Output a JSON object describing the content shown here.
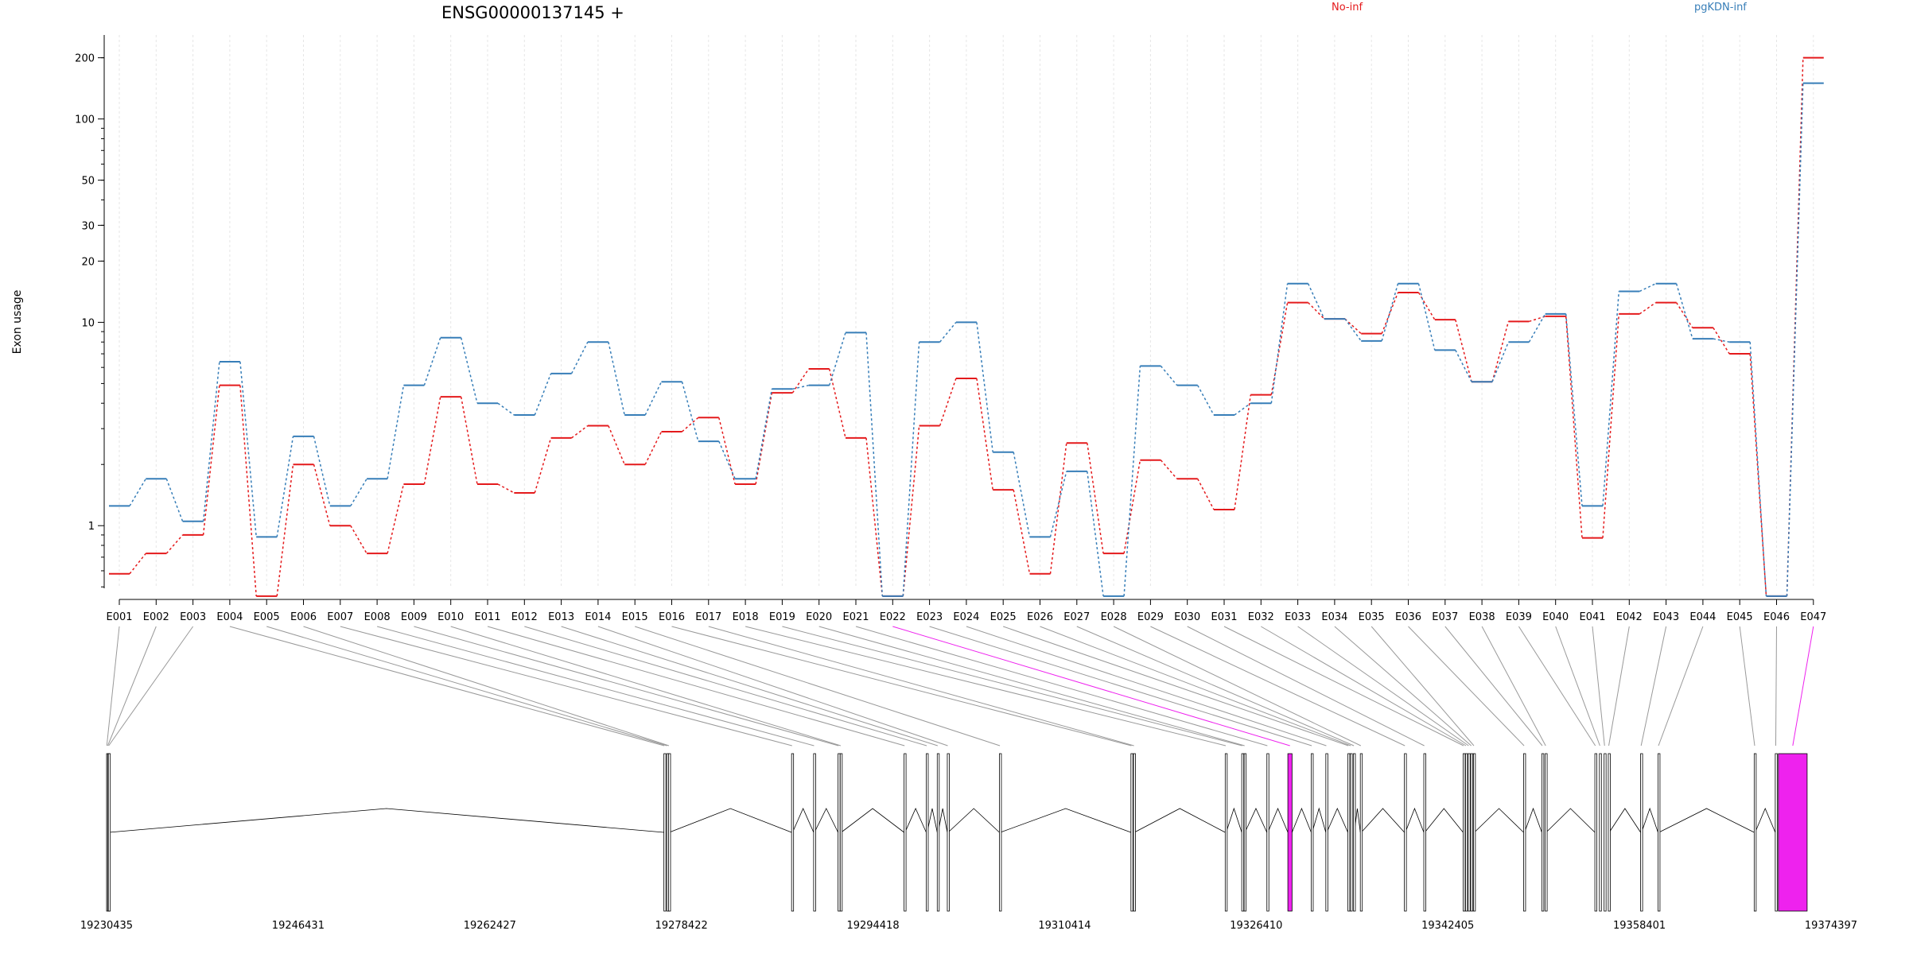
{
  "chart_data": {
    "type": "line",
    "title": "ENSG00000137145 +",
    "ylabel": "Exon usage",
    "yscale": "log",
    "ylim": [
      0.4,
      260
    ],
    "yticks": [
      1,
      10,
      20,
      30,
      50,
      100,
      200
    ],
    "ytick_labels": [
      "1",
      "10",
      "20",
      "30",
      "50",
      "100",
      "200"
    ],
    "legend_placement": "top",
    "colors": {
      "No-inf": "#e41a1c",
      "pgKDN-inf": "#377eb8",
      "highlight": "#ee22ee"
    },
    "categories": [
      "E001",
      "E002",
      "E003",
      "E004",
      "E005",
      "E006",
      "E007",
      "E008",
      "E009",
      "E010",
      "E011",
      "E012",
      "E013",
      "E014",
      "E015",
      "E016",
      "E017",
      "E018",
      "E019",
      "E020",
      "E021",
      "E022",
      "E023",
      "E024",
      "E025",
      "E026",
      "E027",
      "E028",
      "E029",
      "E030",
      "E031",
      "E032",
      "E033",
      "E034",
      "E035",
      "E036",
      "E037",
      "E038",
      "E039",
      "E040",
      "E041",
      "E042",
      "E043",
      "E044",
      "E045",
      "E046",
      "E047"
    ],
    "series": [
      {
        "name": "No-inf",
        "color": "#e41a1c",
        "values": [
          0.58,
          0.73,
          0.9,
          4.9,
          0.45,
          2.0,
          1.0,
          0.73,
          1.6,
          4.3,
          1.6,
          1.45,
          2.7,
          3.1,
          2.0,
          2.9,
          3.4,
          1.6,
          4.5,
          5.9,
          2.7,
          0.45,
          3.1,
          5.3,
          1.5,
          0.58,
          2.55,
          0.73,
          2.1,
          1.7,
          1.2,
          4.4,
          12.5,
          10.4,
          8.8,
          14.0,
          10.3,
          5.1,
          10.1,
          10.7,
          0.87,
          11.0,
          12.5,
          9.4,
          7.0,
          0.45,
          200
        ]
      },
      {
        "name": "pgKDN-inf",
        "color": "#377eb8",
        "values": [
          1.25,
          1.7,
          1.05,
          6.4,
          0.88,
          2.75,
          1.25,
          1.7,
          4.9,
          8.4,
          4.0,
          3.5,
          5.6,
          8.0,
          3.5,
          5.1,
          2.6,
          1.7,
          4.7,
          4.9,
          8.9,
          0.45,
          8.0,
          10.0,
          2.3,
          0.88,
          1.85,
          0.45,
          6.1,
          4.9,
          3.5,
          4.0,
          15.5,
          10.4,
          8.1,
          15.5,
          7.3,
          5.1,
          8.0,
          11.0,
          1.25,
          14.2,
          15.5,
          8.3,
          8.0,
          0.45,
          150
        ]
      }
    ],
    "exon_tags": [
      "",
      "",
      "",
      "",
      "",
      "",
      "",
      "",
      "",
      "",
      "",
      "",
      "",
      "",
      "",
      "",
      "",
      "",
      "",
      "",
      "",
      "highlight",
      "",
      "",
      "",
      "",
      "",
      "",
      "",
      "",
      "",
      "",
      "",
      "",
      "",
      "",
      "",
      "",
      "",
      "",
      "",
      "",
      "",
      "",
      "",
      "",
      "highlight"
    ],
    "genomic_axis": {
      "start": 19230435,
      "end": 19374397,
      "ticks": [
        19230435,
        19246431,
        19262427,
        19278422,
        19294418,
        19310414,
        19326410,
        19342405,
        19358401,
        19374397
      ],
      "tick_labels": [
        "19230435",
        "19246431",
        "19262427",
        "19278422",
        "19294418",
        "19310414",
        "19326410",
        "19342405",
        "19358401",
        "19374397"
      ]
    },
    "exon_positions": [
      [
        19230435,
        19230470
      ],
      [
        19230520,
        19230545
      ],
      [
        19230580,
        19230640
      ],
      [
        19276960,
        19277020
      ],
      [
        19277200,
        19277250
      ],
      [
        19277350,
        19277410
      ],
      [
        19287620,
        19287700
      ],
      [
        19289460,
        19289530
      ],
      [
        19291500,
        19291580
      ],
      [
        19291680,
        19291760
      ],
      [
        19297010,
        19297090
      ],
      [
        19298860,
        19298940
      ],
      [
        19299780,
        19299850
      ],
      [
        19300620,
        19300690
      ],
      [
        19304970,
        19305050
      ],
      [
        19315950,
        19316030
      ],
      [
        19316160,
        19316240
      ],
      [
        19323820,
        19323900
      ],
      [
        19325200,
        19325280
      ],
      [
        19325400,
        19325470
      ],
      [
        19327300,
        19327380
      ],
      [
        19329050,
        19329400
      ],
      [
        19331000,
        19331080
      ],
      [
        19332220,
        19332300
      ],
      [
        19334060,
        19334140
      ],
      [
        19334260,
        19334340
      ],
      [
        19334520,
        19334600
      ],
      [
        19335100,
        19335180
      ],
      [
        19338780,
        19338860
      ],
      [
        19340400,
        19340480
      ],
      [
        19343680,
        19343760
      ],
      [
        19343880,
        19343960
      ],
      [
        19344100,
        19344180
      ],
      [
        19344320,
        19344400
      ],
      [
        19344540,
        19344620
      ],
      [
        19348730,
        19348810
      ],
      [
        19350250,
        19350330
      ],
      [
        19350530,
        19350610
      ],
      [
        19354680,
        19354760
      ],
      [
        19355060,
        19355140
      ],
      [
        19355450,
        19355530
      ],
      [
        19355800,
        19355880
      ],
      [
        19358500,
        19358580
      ],
      [
        19359950,
        19360030
      ],
      [
        19367980,
        19368060
      ],
      [
        19369740,
        19369820
      ],
      [
        19370000,
        19372400
      ]
    ]
  },
  "legend": {
    "items": [
      {
        "label": "No-inf",
        "color": "#e41a1c"
      },
      {
        "label": "pgKDN-inf",
        "color": "#377eb8"
      }
    ]
  }
}
